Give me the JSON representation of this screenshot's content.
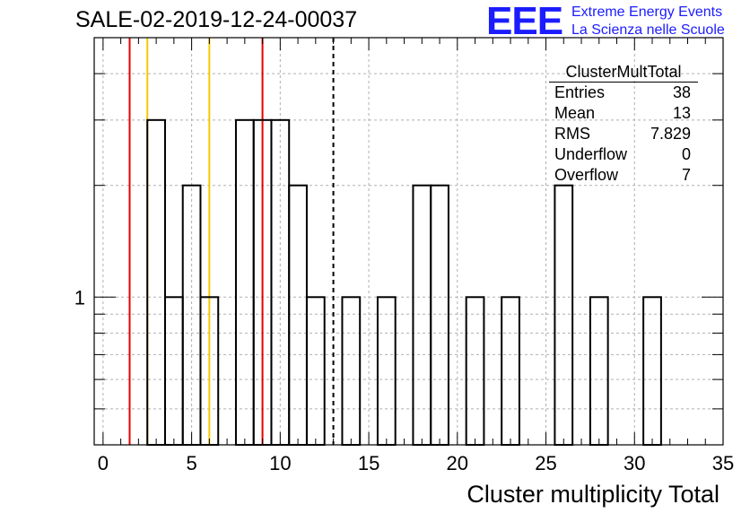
{
  "title": "SALE-02-2019-12-24-00037",
  "logo": {
    "letters": "EEE",
    "line1": "Extreme Energy Events",
    "line2": "La Scienza nelle Scuole",
    "color": "#1c1cff"
  },
  "stats": {
    "name": "ClusterMultTotal",
    "rows": [
      {
        "label": "Entries",
        "value": "38"
      },
      {
        "label": "Mean",
        "value": "13"
      },
      {
        "label": "RMS",
        "value": "7.829"
      },
      {
        "label": "Underflow",
        "value": "0"
      },
      {
        "label": "Overflow",
        "value": "7"
      }
    ]
  },
  "chart_data": {
    "type": "histogram",
    "xlabel": "Cluster multiplicity Total",
    "ylabel": "",
    "xlim": [
      -0.5,
      35
    ],
    "y_log_scale": true,
    "ylim": [
      0.4,
      5
    ],
    "y_tick_labels": [
      "1"
    ],
    "x_ticks": [
      0,
      5,
      10,
      15,
      20,
      25,
      30,
      35
    ],
    "grid": true,
    "bin_width": 1,
    "bins": [
      {
        "low": 2.5,
        "count": 3
      },
      {
        "low": 3.5,
        "count": 1
      },
      {
        "low": 4.5,
        "count": 2
      },
      {
        "low": 5.5,
        "count": 1
      },
      {
        "low": 7.5,
        "count": 3
      },
      {
        "low": 8.5,
        "count": 3
      },
      {
        "low": 9.5,
        "count": 3
      },
      {
        "low": 10.5,
        "count": 2
      },
      {
        "low": 11.5,
        "count": 1
      },
      {
        "low": 13.5,
        "count": 1
      },
      {
        "low": 15.5,
        "count": 1
      },
      {
        "low": 17.5,
        "count": 2
      },
      {
        "low": 18.5,
        "count": 2
      },
      {
        "low": 20.5,
        "count": 1
      },
      {
        "low": 22.5,
        "count": 1
      },
      {
        "low": 25.5,
        "count": 2
      },
      {
        "low": 27.5,
        "count": 1
      },
      {
        "low": 30.5,
        "count": 1
      }
    ],
    "vertical_lines": [
      {
        "x": 1.5,
        "color": "#e60000",
        "style": "solid"
      },
      {
        "x": 2.5,
        "color": "#f5c800",
        "style": "solid"
      },
      {
        "x": 6.0,
        "color": "#f5c800",
        "style": "solid"
      },
      {
        "x": 9.0,
        "color": "#e60000",
        "style": "solid"
      },
      {
        "x": 13.0,
        "color": "#000000",
        "style": "dashed"
      }
    ]
  }
}
